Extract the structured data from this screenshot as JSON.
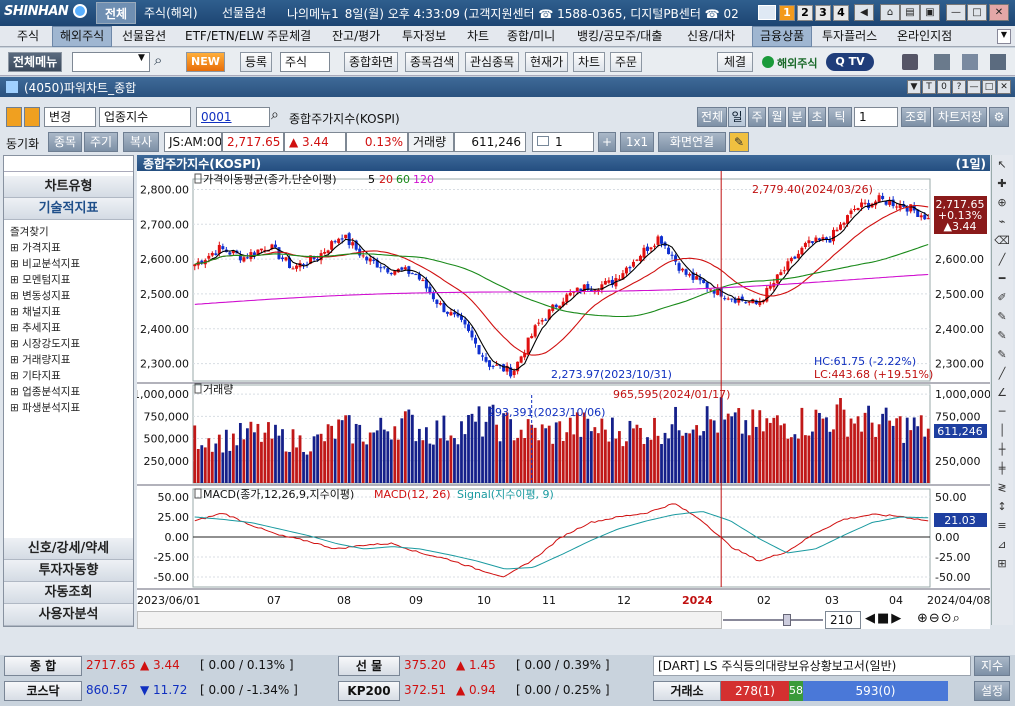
{
  "app": {
    "logo": "SHINHAN",
    "top_tabs": [
      "전체",
      "주식(해외)",
      "선물옵션",
      "나의메뉴1"
    ],
    "clock": "8일(월) 오후 4:33:09 (고객지원센터 ☎ 1588-0365, 디지털PB센터 ☎ 02",
    "screen_numbers": [
      "1",
      "2",
      "3",
      "4"
    ]
  },
  "menu": [
    "주식",
    "해외주식",
    "선물옵션",
    "ETF/ETN/ELW",
    "주문체결",
    "잔고/평가",
    "투자정보",
    "차트",
    "종합/미니",
    "뱅킹/공모주/대출",
    "신용/대차",
    "금융상품",
    "투자플러스",
    "온라인지점"
  ],
  "toolbar": {
    "menu_button": "전체메뉴",
    "new_badge": "NEW",
    "buttons": [
      "등록",
      "주식",
      "종합화면",
      "종목검색",
      "관심종목",
      "현재가",
      "차트",
      "주문",
      "체결"
    ],
    "overseas": "해외주식",
    "qtv": "Q TV"
  },
  "window": {
    "title": "(4050)파워차트_종합",
    "title_controls": [
      "▼",
      "T",
      "0",
      "?",
      "—",
      "□",
      "✕"
    ]
  },
  "controls": {
    "change_label": "변경",
    "market_select": "업종지수",
    "code": "0001",
    "index_name": "종합주가지수(KOSPI)",
    "period_buttons": [
      "전체",
      "일",
      "주",
      "월",
      "분",
      "초",
      "틱"
    ],
    "period_count": "1",
    "query_button": "조회",
    "save_button": "차트저장",
    "sync_label": "동기화",
    "sync_buttons": [
      "종목",
      "주기"
    ],
    "copy_button": "복사",
    "time_label": "JS:AM:00",
    "price": "2,717.65",
    "change": "▲ 3.44",
    "change_pct": "0.13%",
    "volume_label": "거래량",
    "volume": "611,246",
    "layout_count": "1",
    "plus": "+",
    "grid": "1x1",
    "link_button": "화면연결"
  },
  "left_panel": {
    "chart_type": "차트유형",
    "tech": "기술적지표",
    "tree": [
      "즐겨찾기",
      "가격지표",
      "비교분석지표",
      "모멘텀지표",
      "변동성지표",
      "채널지표",
      "추세지표",
      "시장강도지표",
      "거래량지표",
      "기타지표",
      "업종분석지표",
      "파생분석지표"
    ],
    "bottom": [
      "신호/강세/약세",
      "투자자동향",
      "자동조회",
      "사용자분석"
    ]
  },
  "chart": {
    "title": "종합주가지수(KOSPI)",
    "period_tag": "(1일)",
    "price_panel_label": "가격이동평균(종가,단순이평)",
    "ma_periods": [
      "5",
      "20",
      "60",
      "120"
    ],
    "ma_colors": {
      "5": "#000000",
      "20": "#d01010",
      "60": "#1a8a1a",
      "120": "#d010d0"
    },
    "high_label": "2,779.40(2024/03/26)",
    "low_label": "2,273.97(2023/10/31)",
    "hc_label": "HC:61.75 (-2.22%)",
    "lc_label": "LC:443.68 (+19.51%)",
    "current_badge": [
      "2,717.65",
      "+0.13%",
      "▲3.44"
    ],
    "volume_label": "거래량",
    "volume_peak_label": "965,595(2024/01/17)",
    "volume_mark_label": "293,391(2023/10/06)",
    "volume_badge": "611,246",
    "macd_label": "MACD(종가,12,26,9,지수이평)",
    "macd_series": "MACD(12, 26)",
    "signal_series": "Signal(지수이평, 9)",
    "macd_badge": "21.03",
    "x_labels": [
      "2023/06/01",
      "07",
      "08",
      "09",
      "10",
      "11",
      "12",
      "2024",
      "02",
      "03",
      "04",
      "2024/04/08"
    ],
    "zoom_count": "210"
  },
  "chart_data": {
    "type": "candlestick",
    "title": "종합주가지수(KOSPI)",
    "price_axis": [
      "2,800.00",
      "2,700.00",
      "2,600.00",
      "2,500.00",
      "2,400.00",
      "2,300.00"
    ],
    "price_ylim": [
      2250,
      2830
    ],
    "volume_axis": [
      "1,000,000",
      "750,000",
      "500,000",
      "250,000"
    ],
    "volume_ylim": [
      0,
      1080000
    ],
    "macd_axis": [
      "50.00",
      "25.00",
      "0.00",
      "-25.00",
      "-50.00"
    ],
    "macd_ylim": [
      -60,
      60
    ],
    "months": [
      "2023/06",
      "2023/07",
      "2023/08",
      "2023/09",
      "2023/10",
      "2023/11",
      "2023/12",
      "2024/01",
      "2024/02",
      "2024/03",
      "2024/04"
    ],
    "close_anchors": [
      2585,
      2630,
      2605,
      2640,
      2575,
      2605,
      2670,
      2600,
      2570,
      2560,
      2470,
      2408,
      2300,
      2275,
      2410,
      2485,
      2520,
      2530,
      2600,
      2665,
      2560,
      2520,
      2490,
      2470,
      2560,
      2640,
      2660,
      2745,
      2770,
      2755,
      2718
    ],
    "volume_levels": [
      520000,
      480000,
      560000,
      500000,
      440000,
      620000,
      540000,
      700000,
      580000,
      620000,
      700000,
      600000,
      560000,
      640000,
      600000,
      580000,
      620000,
      740000,
      680000,
      640000,
      660000,
      700000,
      760000,
      690000,
      640000,
      611246
    ],
    "macd_anchors": [
      20,
      30,
      15,
      2,
      -5,
      -15,
      -10,
      -8,
      -20,
      -28,
      -40,
      -50,
      -28,
      0,
      18,
      25,
      30,
      42,
      20,
      -12,
      -30,
      -18,
      5,
      22,
      28,
      26,
      20
    ],
    "signal_anchors": [
      25,
      22,
      18,
      10,
      2,
      -8,
      -15,
      -12,
      -15,
      -22,
      -30,
      -40,
      -38,
      -22,
      -5,
      10,
      20,
      28,
      32,
      20,
      -2,
      -20,
      -15,
      2,
      18,
      25,
      24
    ]
  },
  "right_axis_scale": [
    "2,800.00",
    "2,700.00",
    "2,600.00",
    "2,500.00",
    "2,400.00",
    "2,300.00"
  ],
  "status": {
    "row1": {
      "label": "종 합",
      "value": "2717.65",
      "change": "▲ 3.44",
      "detail": "[ 0.00 / 0.13% ]",
      "label2": "선 물",
      "value2": "375.20",
      "change2": "▲ 1.45",
      "detail2": "[ 0.00 / 0.39% ]",
      "news": "[DART] LS 주식등의대량보유상황보고서(일반)",
      "btn": "지수"
    },
    "row2": {
      "label": "코스닥",
      "value": "860.57",
      "change": "▼ 11.72",
      "detail": "[ 0.00 / -1.34% ]",
      "label2": "KP200",
      "value2": "372.51",
      "change2": "▲ 0.94",
      "detail2": "[ 0.00 / 0.25% ]",
      "label3": "거래소",
      "up": "278(1)",
      "flat": "58",
      "down": "593(0)",
      "btn": "설정"
    }
  }
}
